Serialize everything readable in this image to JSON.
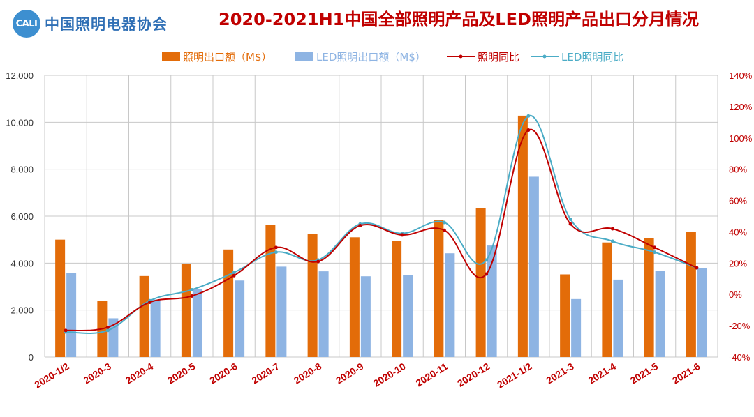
{
  "header": {
    "logo_mark": "CALI",
    "logo_text": "中国照明电器协会",
    "title": "2020-2021H1中国全部照明产品及LED照明产品出口分月情况"
  },
  "colors": {
    "bar1": "#e36c09",
    "bar2": "#8eb4e3",
    "line1": "#c00000",
    "line2": "#4bacc6",
    "title": "#c00000",
    "grid": "#c8c8c8"
  },
  "chart_data": {
    "type": "bar",
    "title": "2020-2021H1中国全部照明产品及LED照明产品出口分月情况",
    "categories": [
      "2020-1/2",
      "2020-3",
      "2020-4",
      "2020-5",
      "2020-6",
      "2020-7",
      "2020-8",
      "2020-9",
      "2020-10",
      "2020-11",
      "2020-12",
      "2021-1/2",
      "2021-3",
      "2021-4",
      "2021-5",
      "2021-6"
    ],
    "series": [
      {
        "name": "照明出口额（M$）",
        "type": "bar",
        "axis": "left",
        "values": [
          5000,
          2400,
          3450,
          3980,
          4580,
          5620,
          5250,
          5100,
          4940,
          5850,
          6350,
          10280,
          3520,
          4880,
          5050,
          5330
        ]
      },
      {
        "name": "LED照明出口额（M$）",
        "type": "bar",
        "axis": "left",
        "values": [
          3580,
          1650,
          2450,
          2900,
          3260,
          3850,
          3650,
          3440,
          3490,
          4420,
          4750,
          7680,
          2470,
          3300,
          3660,
          3800
        ]
      },
      {
        "name": "照明同比",
        "type": "line",
        "axis": "right",
        "values": [
          -23,
          -21,
          -5,
          -1,
          12,
          30,
          21,
          44,
          38,
          41,
          13,
          105,
          45,
          42,
          30,
          17
        ]
      },
      {
        "name": "LED照明同比",
        "type": "line",
        "axis": "right",
        "values": [
          -24,
          -23,
          -4,
          3,
          14,
          27,
          22,
          45,
          39,
          46,
          22,
          114,
          48,
          34,
          27,
          17
        ]
      }
    ],
    "left_axis": {
      "min": 0,
      "max": 12000,
      "ticks": [
        "0",
        "2,000",
        "4,000",
        "6,000",
        "8,000",
        "10,000",
        "12,000"
      ]
    },
    "right_axis": {
      "min": -40,
      "max": 140,
      "ticks": [
        "-40%",
        "-20%",
        "0%",
        "20%",
        "40%",
        "60%",
        "80%",
        "100%",
        "120%",
        "140%"
      ]
    },
    "grid": true,
    "legend_position": "top"
  }
}
